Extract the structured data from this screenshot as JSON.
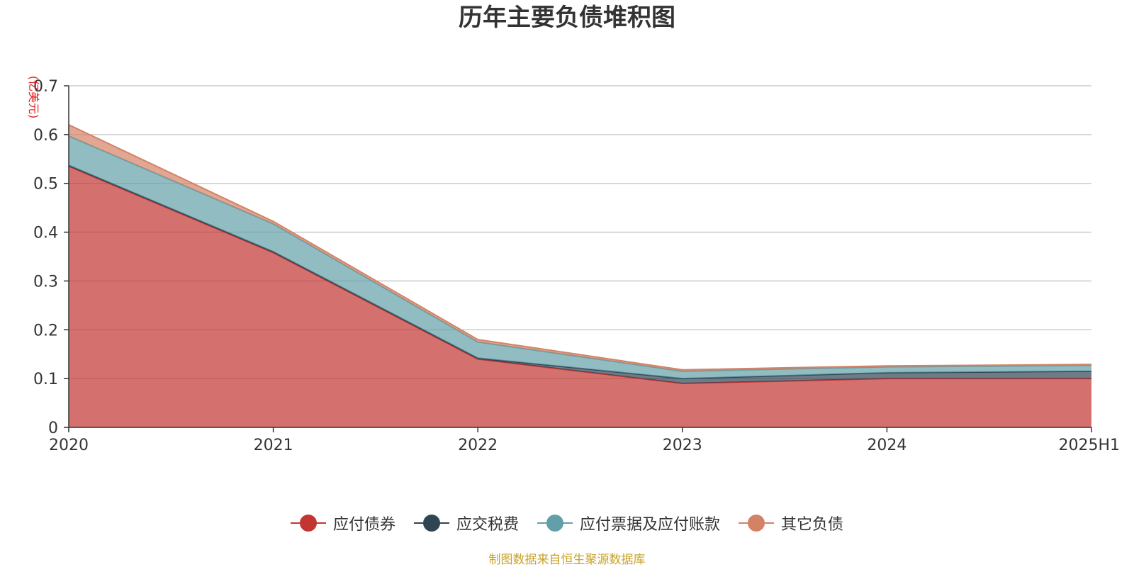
{
  "chart_data": {
    "type": "area",
    "stacked": true,
    "title": "历年主要负债堆积图",
    "ylabel": "(亿美元)",
    "xlabel": "",
    "categories": [
      "2020",
      "2021",
      "2022",
      "2023",
      "2024",
      "2025H1"
    ],
    "ylim": [
      0,
      0.7
    ],
    "yticks": [
      "0",
      "0.1",
      "0.2",
      "0.3",
      "0.4",
      "0.5",
      "0.6",
      "0.7"
    ],
    "grid": true,
    "legend_position": "bottom",
    "series": [
      {
        "name": "应付债券",
        "color": "#c23531",
        "values": [
          0.535,
          0.358,
          0.14,
          0.09,
          0.1,
          0.1
        ]
      },
      {
        "name": "应交税费",
        "color": "#2f4554",
        "values": [
          0.002,
          0.002,
          0.002,
          0.01,
          0.012,
          0.015
        ]
      },
      {
        "name": "应付票据及应付账款",
        "color": "#61a0a8",
        "values": [
          0.06,
          0.057,
          0.033,
          0.015,
          0.012,
          0.012
        ]
      },
      {
        "name": "其它负债",
        "color": "#d48265",
        "values": [
          0.023,
          0.005,
          0.005,
          0.003,
          0.002,
          0.002
        ]
      }
    ]
  },
  "footer": {
    "source": "制图数据来自恒生聚源数据库"
  }
}
